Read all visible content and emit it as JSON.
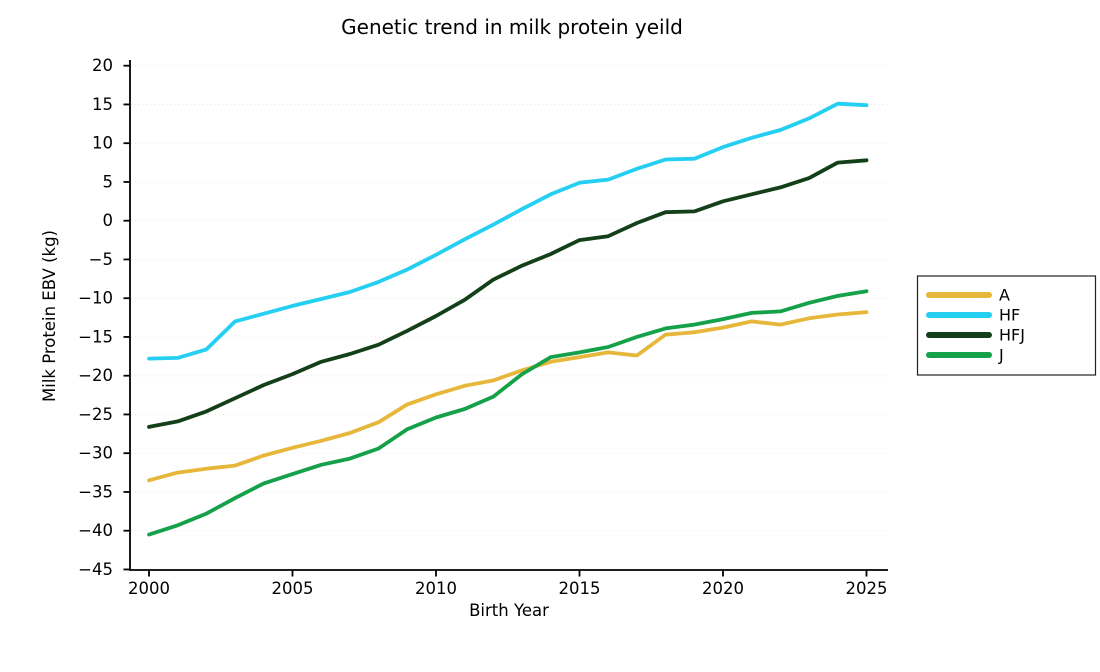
{
  "title": "Genetic trend in milk protein yeild",
  "chart_data": {
    "type": "line",
    "title": "Genetic trend in milk protein yeild",
    "xlabel": "Birth Year",
    "ylabel": "Milk Protein EBV (kg)",
    "x": [
      2000,
      2001,
      2002,
      2003,
      2004,
      2005,
      2006,
      2007,
      2008,
      2009,
      2010,
      2011,
      2012,
      2013,
      2014,
      2015,
      2016,
      2017,
      2018,
      2019,
      2020,
      2021,
      2022,
      2023,
      2024,
      2025
    ],
    "xticks": [
      2000,
      2005,
      2010,
      2015,
      2020,
      2025
    ],
    "ylim": [
      -45,
      20
    ],
    "ytick_step": 5,
    "grid": "faint dotted horizontal gridlines",
    "legend_position": "outside-right",
    "axis_color": "#000000",
    "gridline_color": "#e9e9e9",
    "series": [
      {
        "name": "A",
        "color": "#E7B73C",
        "values": [
          -33.5,
          -32.5,
          -32.0,
          -31.6,
          -30.3,
          -29.3,
          -28.4,
          -27.4,
          -26.0,
          -23.7,
          -22.4,
          -21.3,
          -20.6,
          -19.3,
          -18.2,
          -17.6,
          -17.0,
          -17.4,
          -14.7,
          -14.4,
          -13.8,
          -13.0,
          -13.4,
          -12.6,
          -12.1,
          -11.8
        ]
      },
      {
        "name": "HF",
        "color": "#25CFF2",
        "values": [
          -17.8,
          -17.7,
          -16.6,
          -13.0,
          -12.0,
          -11.0,
          -10.1,
          -9.2,
          -7.9,
          -6.3,
          -4.4,
          -2.4,
          -0.5,
          1.5,
          3.4,
          4.9,
          5.3,
          6.7,
          7.9,
          8.0,
          9.5,
          10.7,
          11.7,
          13.2,
          15.1,
          14.9
        ]
      },
      {
        "name": "HFJ",
        "color": "#134019",
        "values": [
          -26.6,
          -25.9,
          -24.6,
          -22.9,
          -21.2,
          -19.8,
          -18.2,
          -17.2,
          -16.0,
          -14.2,
          -12.3,
          -10.2,
          -7.6,
          -5.8,
          -4.3,
          -2.5,
          -2.0,
          -0.3,
          1.1,
          1.2,
          2.5,
          3.4,
          4.3,
          5.5,
          7.5,
          7.8
        ]
      },
      {
        "name": "J",
        "color": "#15A04A",
        "values": [
          -40.5,
          -39.3,
          -37.8,
          -35.8,
          -33.9,
          -32.7,
          -31.5,
          -30.7,
          -29.4,
          -26.9,
          -25.4,
          -24.3,
          -22.7,
          -19.8,
          -17.6,
          -17.0,
          -16.3,
          -15.0,
          -13.9,
          -13.4,
          -12.7,
          -11.9,
          -11.7,
          -10.6,
          -9.7,
          -9.1
        ]
      }
    ]
  }
}
